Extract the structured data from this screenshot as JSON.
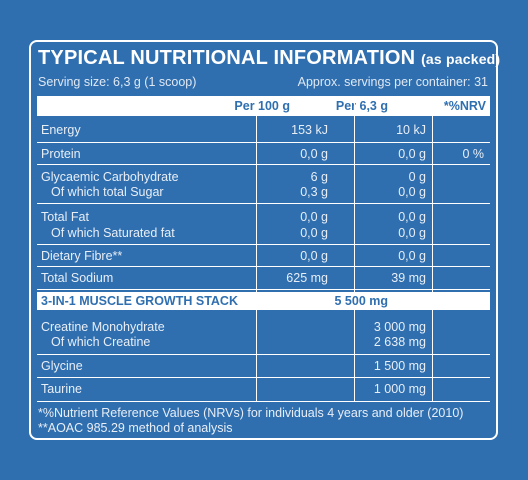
{
  "title": {
    "main": "TYPICAL NUTRITIONAL INFORMATION",
    "suffix": "(as packed)"
  },
  "serving_size": "Serving size: 6,3 g (1 scoop)",
  "servings_per_container": "Approx. servings per container: 31",
  "columns": {
    "per100": "Per 100 g",
    "perServing": "Per 6,3 g",
    "nrv": "*%NRV"
  },
  "rows": [
    {
      "label": "Energy",
      "per100": "153 kJ",
      "perServing": "10 kJ",
      "nrv": ""
    },
    {
      "label": "Protein",
      "per100": "0,0 g",
      "perServing": "0,0 g",
      "nrv": "0 %"
    },
    {
      "label": "Glycaemic Carbohydrate",
      "per100": "6 g",
      "perServing": "0 g",
      "nrv": ""
    },
    {
      "label": "Of which total Sugar",
      "per100": "0,3 g",
      "perServing": "0,0 g",
      "nrv": ""
    },
    {
      "label": "Total Fat",
      "per100": "0,0 g",
      "perServing": "0,0 g",
      "nrv": ""
    },
    {
      "label": "Of which Saturated fat",
      "per100": "0,0 g",
      "perServing": "0,0 g",
      "nrv": ""
    },
    {
      "label": "Dietary Fibre**",
      "per100": "0,0 g",
      "perServing": "0,0 g",
      "nrv": ""
    },
    {
      "label": "Total Sodium",
      "per100": "625 mg",
      "perServing": "39 mg",
      "nrv": ""
    }
  ],
  "stack": {
    "label": "3-IN-1 MUSCLE GROWTH STACK",
    "perServing": "5 500 mg"
  },
  "stack_rows": [
    {
      "label": "Creatine Monohydrate",
      "perServing": "3 000 mg"
    },
    {
      "label": "Of which Creatine",
      "perServing": "2 638 mg"
    },
    {
      "label": "Glycine",
      "perServing": "1 500 mg"
    },
    {
      "label": "Taurine",
      "perServing": "1 000 mg"
    }
  ],
  "footnotes": [
    "*%Nutrient Reference Values (NRVs) for individuals 4 years and older (2010)",
    "**AOAC 985.29 method of analysis"
  ],
  "colors": {
    "background": "#2f6fb0",
    "text": "#ffffff"
  }
}
